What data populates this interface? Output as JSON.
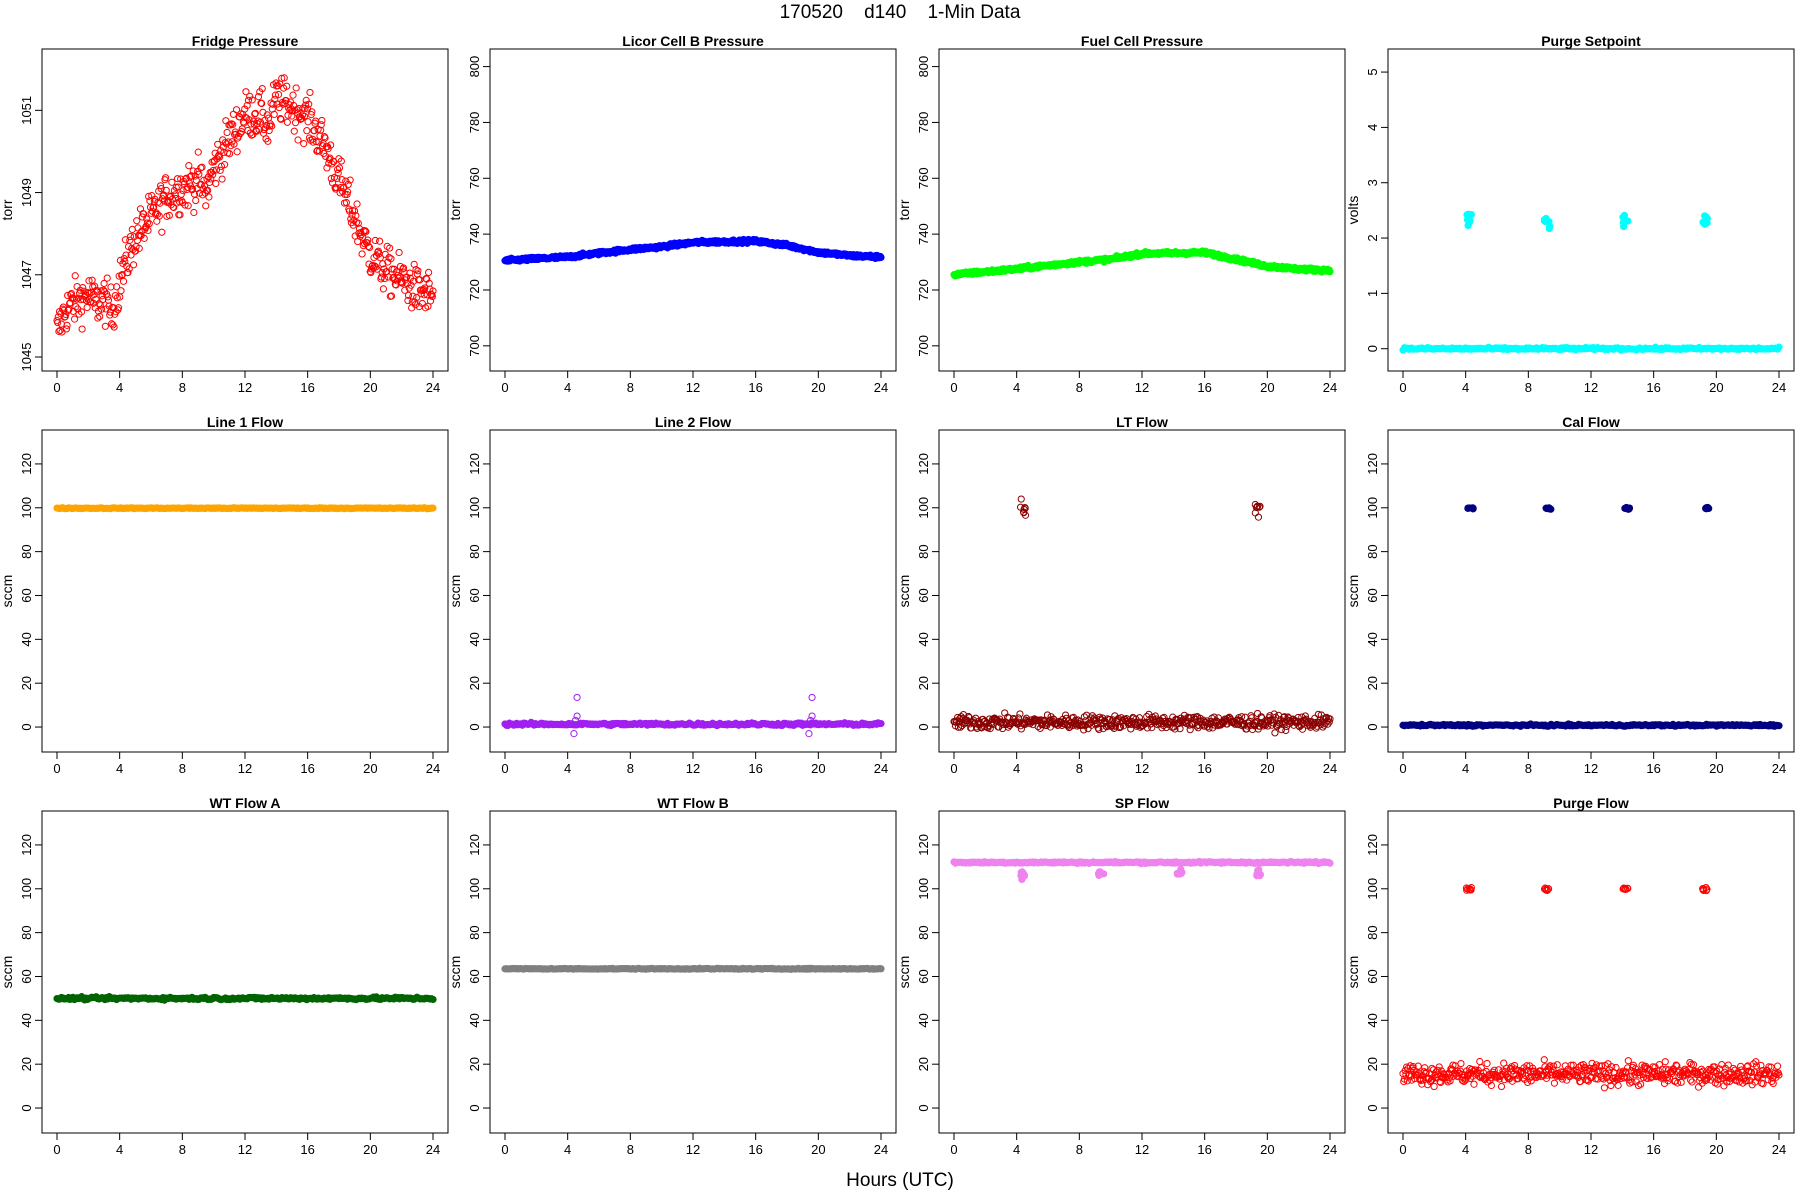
{
  "figure": {
    "title": "170520    d140    1-Min Data",
    "xlabel": "Hours (UTC)"
  },
  "chart_data": [
    {
      "type": "scatter",
      "title": "Fridge Pressure",
      "ylabel": "torr",
      "color": "#ff0000",
      "filled": false,
      "xlim": [
        0,
        24
      ],
      "ylim": [
        1045,
        1052.2
      ],
      "xticks": [
        0,
        4,
        8,
        12,
        16,
        20,
        24
      ],
      "yticks": [
        1045,
        1047,
        1049,
        1051
      ],
      "series": [
        {
          "kind": "curve",
          "noise": 0.28,
          "x": [
            0,
            0.5,
            1,
            1.5,
            2,
            2.5,
            3,
            3.5,
            4,
            4.5,
            5,
            6,
            7,
            8,
            9,
            9.5,
            10,
            11,
            12,
            13,
            13.5,
            14,
            15,
            16,
            17,
            18,
            19,
            19.5,
            20,
            21,
            22,
            23,
            24
          ],
          "y": [
            1045.6,
            1046.1,
            1046.3,
            1046.4,
            1046.5,
            1046.3,
            1046.4,
            1046.1,
            1046.8,
            1047.4,
            1047.9,
            1048.4,
            1048.9,
            1049.1,
            1049.3,
            1049.0,
            1049.6,
            1050.3,
            1050.9,
            1050.9,
            1050.6,
            1051.3,
            1051.1,
            1050.8,
            1050.2,
            1049.3,
            1048.4,
            1047.9,
            1047.5,
            1047.1,
            1046.9,
            1046.6,
            1046.5
          ]
        }
      ]
    },
    {
      "type": "scatter",
      "title": "Licor Cell B Pressure",
      "ylabel": "torr",
      "color": "#0000ff",
      "filled": true,
      "xlim": [
        0,
        24
      ],
      "ylim": [
        696,
        802
      ],
      "xticks": [
        0,
        4,
        8,
        12,
        16,
        20,
        24
      ],
      "yticks": [
        700,
        720,
        740,
        760,
        780,
        800
      ],
      "series": [
        {
          "kind": "curve",
          "noise": 0.3,
          "x": [
            0,
            2,
            4,
            6,
            8,
            10,
            12,
            14,
            16,
            18,
            20,
            22,
            24
          ],
          "y": [
            730.5,
            731.2,
            731.8,
            733.2,
            734.5,
            735.5,
            737.0,
            737.3,
            737.5,
            736.0,
            733.5,
            732.3,
            731.8
          ]
        }
      ]
    },
    {
      "type": "scatter",
      "title": "Fuel Cell Pressure",
      "ylabel": "torr",
      "color": "#00ff00",
      "filled": true,
      "xlim": [
        0,
        24
      ],
      "ylim": [
        696,
        802
      ],
      "xticks": [
        0,
        4,
        8,
        12,
        16,
        20,
        24
      ],
      "yticks": [
        700,
        720,
        740,
        760,
        780,
        800
      ],
      "series": [
        {
          "kind": "curve",
          "noise": 0.3,
          "x": [
            0,
            2,
            4,
            6,
            8,
            10,
            12,
            14,
            16,
            18,
            20,
            22,
            24
          ],
          "y": [
            725.5,
            726.5,
            727.5,
            728.8,
            730.0,
            731.0,
            733.0,
            733.2,
            733.4,
            731.0,
            728.5,
            727.5,
            727.0
          ]
        }
      ]
    },
    {
      "type": "scatter",
      "title": "Purge Setpoint",
      "ylabel": "volts",
      "color": "#00ffff",
      "filled": true,
      "xlim": [
        0,
        24
      ],
      "ylim": [
        -0.15,
        5.2
      ],
      "xticks": [
        0,
        4,
        8,
        12,
        16,
        20,
        24
      ],
      "yticks": [
        0,
        1,
        2,
        3,
        4,
        5
      ],
      "series": [
        {
          "kind": "line",
          "x0": 0,
          "x1": 24,
          "y": 0,
          "noise": 0.01
        },
        {
          "kind": "cluster",
          "x": 4.2,
          "y": 2.32,
          "spread": 0.06
        },
        {
          "kind": "cluster",
          "x": 9.2,
          "y": 2.32,
          "spread": 0.06
        },
        {
          "kind": "cluster",
          "x": 14.2,
          "y": 2.32,
          "spread": 0.06
        },
        {
          "kind": "cluster",
          "x": 19.3,
          "y": 2.32,
          "spread": 0.06
        }
      ]
    },
    {
      "type": "scatter",
      "title": "Line 1 Flow",
      "ylabel": "sccm",
      "color": "#ffa500",
      "filled": true,
      "xlim": [
        0,
        24
      ],
      "ylim": [
        -5,
        130
      ],
      "xticks": [
        0,
        4,
        8,
        12,
        16,
        20,
        24
      ],
      "yticks": [
        0,
        20,
        40,
        60,
        80,
        100,
        120
      ],
      "series": [
        {
          "kind": "line",
          "x0": 0,
          "x1": 24,
          "y": 99.8,
          "noise": 0.1
        }
      ]
    },
    {
      "type": "scatter",
      "title": "Line 2 Flow",
      "ylabel": "sccm",
      "color": "#a020f0",
      "filled": true,
      "xlim": [
        0,
        24
      ],
      "ylim": [
        -5,
        130
      ],
      "xticks": [
        0,
        4,
        8,
        12,
        16,
        20,
        24
      ],
      "yticks": [
        0,
        20,
        40,
        60,
        80,
        100,
        120
      ],
      "series": [
        {
          "kind": "line",
          "x0": 0,
          "x1": 24,
          "y": 1.3,
          "noise": 0.3
        },
        {
          "kind": "points",
          "x": [
            4.4,
            4.5,
            4.5,
            4.6,
            4.6
          ],
          "y": [
            -3,
            1,
            3,
            5,
            13.5
          ],
          "filled": false
        },
        {
          "kind": "points",
          "x": [
            19.4,
            19.5,
            19.5,
            19.6,
            19.6
          ],
          "y": [
            -3,
            1,
            3,
            5,
            13.5
          ],
          "filled": false
        }
      ]
    },
    {
      "type": "scatter",
      "title": "LT Flow",
      "ylabel": "sccm",
      "color": "#8b0000",
      "filled": false,
      "xlim": [
        0,
        24
      ],
      "ylim": [
        -5,
        130
      ],
      "xticks": [
        0,
        4,
        8,
        12,
        16,
        20,
        24
      ],
      "yticks": [
        0,
        20,
        40,
        60,
        80,
        100,
        120
      ],
      "series": [
        {
          "kind": "line",
          "x0": 0,
          "x1": 24,
          "y": 2.2,
          "noise": 1.6
        },
        {
          "kind": "cluster",
          "x": 4.4,
          "y": 99.5,
          "spread": 1.8
        },
        {
          "kind": "cluster",
          "x": 19.4,
          "y": 99.5,
          "spread": 1.8
        }
      ]
    },
    {
      "type": "scatter",
      "title": "Cal Flow",
      "ylabel": "sccm",
      "color": "#000080",
      "filled": true,
      "xlim": [
        0,
        24
      ],
      "ylim": [
        -5,
        130
      ],
      "xticks": [
        0,
        4,
        8,
        12,
        16,
        20,
        24
      ],
      "yticks": [
        0,
        20,
        40,
        60,
        80,
        100,
        120
      ],
      "series": [
        {
          "kind": "line",
          "x0": 0,
          "x1": 24,
          "y": 0.8,
          "noise": 0.2
        },
        {
          "kind": "cluster",
          "x": 4.3,
          "y": 99.8,
          "spread": 0.2
        },
        {
          "kind": "cluster",
          "x": 9.3,
          "y": 99.8,
          "spread": 0.2
        },
        {
          "kind": "cluster",
          "x": 14.3,
          "y": 99.8,
          "spread": 0.2
        },
        {
          "kind": "cluster",
          "x": 19.4,
          "y": 99.8,
          "spread": 0.2
        }
      ]
    },
    {
      "type": "scatter",
      "title": "WT Flow A",
      "ylabel": "sccm",
      "color": "#006400",
      "filled": true,
      "xlim": [
        0,
        24
      ],
      "ylim": [
        -5,
        130
      ],
      "xticks": [
        0,
        4,
        8,
        12,
        16,
        20,
        24
      ],
      "yticks": [
        0,
        20,
        40,
        60,
        80,
        100,
        120
      ],
      "series": [
        {
          "kind": "line",
          "x0": 0,
          "x1": 24,
          "y": 50.0,
          "noise": 0.3
        }
      ]
    },
    {
      "type": "scatter",
      "title": "WT Flow B",
      "ylabel": "sccm",
      "color": "#808080",
      "filled": true,
      "xlim": [
        0,
        24
      ],
      "ylim": [
        -5,
        130
      ],
      "xticks": [
        0,
        4,
        8,
        12,
        16,
        20,
        24
      ],
      "yticks": [
        0,
        20,
        40,
        60,
        80,
        100,
        120
      ],
      "series": [
        {
          "kind": "line",
          "x0": 0,
          "x1": 24,
          "y": 63.5,
          "noise": 0.1
        }
      ]
    },
    {
      "type": "scatter",
      "title": "SP Flow",
      "ylabel": "sccm",
      "color": "#ee82ee",
      "filled": true,
      "xlim": [
        0,
        24
      ],
      "ylim": [
        -5,
        130
      ],
      "xticks": [
        0,
        4,
        8,
        12,
        16,
        20,
        24
      ],
      "yticks": [
        0,
        20,
        40,
        60,
        80,
        100,
        120
      ],
      "series": [
        {
          "kind": "line",
          "x0": 0,
          "x1": 24,
          "y": 112.0,
          "noise": 0.2
        },
        {
          "kind": "cluster",
          "x": 4.4,
          "y": 106.5,
          "spread": 1.0
        },
        {
          "kind": "cluster",
          "x": 9.4,
          "y": 107.5,
          "spread": 0.6
        },
        {
          "kind": "cluster",
          "x": 14.4,
          "y": 107.5,
          "spread": 0.6
        },
        {
          "kind": "cluster",
          "x": 19.5,
          "y": 107.0,
          "spread": 0.8
        }
      ]
    },
    {
      "type": "scatter",
      "title": "Purge Flow",
      "ylabel": "sccm",
      "color": "#ff0000",
      "filled": false,
      "xlim": [
        0,
        24
      ],
      "ylim": [
        -5,
        130
      ],
      "xticks": [
        0,
        4,
        8,
        12,
        16,
        20,
        24
      ],
      "yticks": [
        0,
        20,
        40,
        60,
        80,
        100,
        120
      ],
      "series": [
        {
          "kind": "line",
          "x0": 0,
          "x1": 24,
          "y": 15.5,
          "noise": 2.4
        },
        {
          "kind": "cluster",
          "x": 4.2,
          "y": 99.8,
          "spread": 0.5
        },
        {
          "kind": "cluster",
          "x": 9.2,
          "y": 99.8,
          "spread": 0.5
        },
        {
          "kind": "cluster",
          "x": 14.2,
          "y": 99.8,
          "spread": 0.5
        },
        {
          "kind": "cluster",
          "x": 19.3,
          "y": 99.8,
          "spread": 0.5
        }
      ]
    }
  ]
}
